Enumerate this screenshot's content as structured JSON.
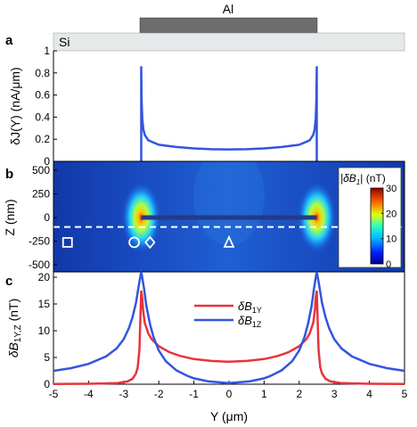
{
  "header": {
    "metal_label": "Al",
    "substrate_label": "Si",
    "metal_color": "#6d6d6d",
    "substrate_color": "#e4e9ea"
  },
  "chart_data": [
    {
      "panel": "a",
      "type": "line",
      "ylabel": "δJ(Y) (nA/μm)",
      "ylim": [
        0,
        1
      ],
      "yticks": [
        "0",
        "0.2",
        "0.4",
        "0.6",
        "0.8",
        "1"
      ],
      "xlim": [
        -5,
        5
      ],
      "series": [
        {
          "color": "#3355dd",
          "description_of_shape": "current density across strip, edges at ±2.5 μm",
          "x": [
            -2.5,
            -2.49,
            -2.47,
            -2.44,
            -2.4,
            -2.3,
            -2.0,
            -1.5,
            -1.0,
            -0.5,
            0,
            0.5,
            1.0,
            1.5,
            2.0,
            2.3,
            2.4,
            2.44,
            2.47,
            2.49,
            2.5
          ],
          "y": [
            0.86,
            0.56,
            0.38,
            0.29,
            0.24,
            0.19,
            0.15,
            0.13,
            0.117,
            0.11,
            0.108,
            0.11,
            0.117,
            0.13,
            0.15,
            0.19,
            0.24,
            0.29,
            0.38,
            0.56,
            0.86
          ]
        }
      ]
    },
    {
      "panel": "b",
      "type": "heatmap",
      "ylabel": "Z (nm)",
      "ylim": [
        -500,
        500
      ],
      "yticks": [
        "-500",
        "-250",
        "0",
        "250",
        "500"
      ],
      "xlim": [
        -5,
        5
      ],
      "colorbar": {
        "label_prefix": "|δB",
        "label_sub": "1",
        "label_suffix": "| (nT)",
        "ticks": [
          "0",
          "10",
          "20",
          "30"
        ],
        "range": [
          0,
          30
        ]
      },
      "strip": {
        "x": [
          -2.5,
          2.5
        ],
        "z": 0,
        "color": "#253a86"
      },
      "hot_spots": [
        {
          "x": -2.5,
          "z": 0,
          "value": 30
        },
        {
          "x": 2.5,
          "z": 0,
          "value": 30
        }
      ],
      "dashed_line_z": -100,
      "markers": [
        {
          "shape": "square",
          "x": -4.6,
          "z": -150
        },
        {
          "shape": "circle",
          "x": -2.7,
          "z": -150
        },
        {
          "shape": "diamond",
          "x": -2.25,
          "z": -150
        },
        {
          "shape": "triangle",
          "x": 0,
          "z": -150
        }
      ]
    },
    {
      "panel": "c",
      "type": "line",
      "ylabel_main": "δB",
      "ylabel_sub": "1Y,Z",
      "ylabel_unit": " (nT)",
      "ylim": [
        0,
        21
      ],
      "yticks": [
        "0",
        "5",
        "10",
        "15",
        "20"
      ],
      "xlabel": "Y (μm)",
      "xlim": [
        -5,
        5
      ],
      "xticks": [
        "-5",
        "-4",
        "-3",
        "-2",
        "-1",
        "0",
        "1",
        "2",
        "3",
        "4",
        "5"
      ],
      "legend_placement": "center",
      "series": [
        {
          "name_main": "δB",
          "name_sub": "1Y",
          "color": "#e8333b",
          "x": [
            -5,
            -4,
            -3.2,
            -2.9,
            -2.75,
            -2.65,
            -2.6,
            -2.55,
            -2.5,
            -2.47,
            -2.45,
            -2.4,
            -2.3,
            -2.2,
            -2.0,
            -1.7,
            -1.4,
            -1.0,
            -0.5,
            0,
            0.5,
            1.0,
            1.4,
            1.7,
            2.0,
            2.2,
            2.3,
            2.4,
            2.45,
            2.47,
            2.5,
            2.55,
            2.6,
            2.65,
            2.75,
            2.9,
            3.2,
            4,
            5
          ],
          "y": [
            0.05,
            0.08,
            0.2,
            0.5,
            1.0,
            2.0,
            3.2,
            6.5,
            17.5,
            16,
            14,
            11.5,
            9.5,
            8.4,
            7.1,
            6.0,
            5.3,
            4.7,
            4.35,
            4.2,
            4.35,
            4.7,
            5.3,
            6.0,
            7.1,
            8.4,
            9.5,
            11.5,
            14,
            16,
            17.5,
            6.5,
            3.2,
            2.0,
            1.0,
            0.5,
            0.2,
            0.08,
            0.05
          ]
        },
        {
          "name_main": "δB",
          "name_sub": "1Z",
          "color": "#3355dd",
          "x": [
            -5,
            -4.5,
            -4,
            -3.5,
            -3.2,
            -3.0,
            -2.85,
            -2.75,
            -2.65,
            -2.58,
            -2.52,
            -2.5,
            -2.48,
            -2.42,
            -2.35,
            -2.25,
            -2.15,
            -2.0,
            -1.8,
            -1.5,
            -1.2,
            -1.0,
            -0.6,
            0,
            0.6,
            1.0,
            1.2,
            1.5,
            1.8,
            2.0,
            2.15,
            2.25,
            2.35,
            2.42,
            2.48,
            2.5,
            2.52,
            2.58,
            2.65,
            2.75,
            2.85,
            3.0,
            3.2,
            3.5,
            4,
            4.5,
            5
          ],
          "y": [
            2.5,
            3.0,
            3.8,
            5.2,
            6.7,
            8.4,
            10.5,
            12.5,
            15.2,
            18.0,
            20.3,
            21.0,
            20.3,
            17.8,
            14.5,
            11.2,
            8.8,
            6.3,
            4.3,
            2.6,
            1.6,
            1.1,
            0.55,
            0.2,
            0.55,
            1.1,
            1.6,
            2.6,
            4.3,
            6.3,
            8.8,
            11.2,
            14.5,
            17.8,
            20.3,
            21.0,
            20.3,
            18.0,
            15.2,
            12.5,
            10.5,
            8.4,
            6.7,
            5.2,
            3.8,
            3.0,
            2.5
          ]
        }
      ]
    }
  ],
  "panel_letters": [
    "a",
    "b",
    "c"
  ]
}
